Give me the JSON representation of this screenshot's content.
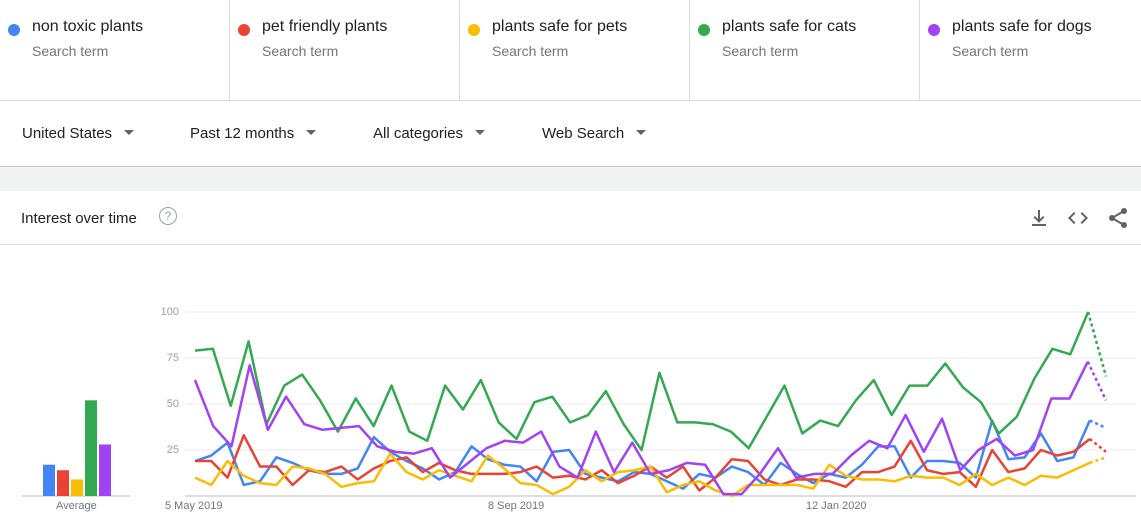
{
  "terms": [
    {
      "name": "non toxic plants",
      "sub": "Search term",
      "color": "#4285f4"
    },
    {
      "name": "pet friendly plants",
      "sub": "Search term",
      "color": "#ea4335"
    },
    {
      "name": "plants safe for pets",
      "sub": "Search term",
      "color": "#fbbc04"
    },
    {
      "name": "plants safe for cats",
      "sub": "Search term",
      "color": "#34a853"
    },
    {
      "name": "plants safe for dogs",
      "sub": "Search term",
      "color": "#a142f4"
    }
  ],
  "filters": {
    "region": "United States",
    "period": "Past 12 months",
    "category": "All categories",
    "search_type": "Web Search"
  },
  "card": {
    "title": "Interest over time",
    "help": "?",
    "icons": [
      "download-icon",
      "embed-icon",
      "share-icon"
    ]
  },
  "chart_data": {
    "type": "line",
    "title": "Interest over time",
    "ylim": [
      0,
      100
    ],
    "yticks": [
      "100",
      "75",
      "50",
      "25"
    ],
    "xticklabels": [
      "5 May 2019",
      "8 Sep 2019",
      "12 Jan 2020"
    ],
    "average_label": "Average",
    "averages": [
      {
        "name": "non toxic plants",
        "value": 17
      },
      {
        "name": "pet friendly plants",
        "value": 14
      },
      {
        "name": "plants safe for pets",
        "value": 9
      },
      {
        "name": "plants safe for cats",
        "value": 52
      },
      {
        "name": "plants safe for dogs",
        "value": 28
      }
    ],
    "series": [
      {
        "name": "non toxic plants",
        "color": "#4285f4",
        "values": [
          19,
          22,
          29,
          6,
          8,
          21,
          18,
          14,
          12,
          12,
          15,
          32,
          24,
          19,
          15,
          9,
          13,
          27,
          20,
          17,
          16,
          8,
          24,
          25,
          12,
          10,
          8,
          13,
          12,
          8,
          4,
          12,
          10,
          16,
          13,
          6,
          18,
          12,
          7,
          12,
          10,
          17,
          27,
          27,
          10,
          19,
          19,
          18,
          10,
          41,
          20,
          21,
          34,
          19,
          21,
          41,
          37
        ],
        "dotted_from": 55
      },
      {
        "name": "pet friendly plants",
        "color": "#ea4335",
        "values": [
          19,
          19,
          10,
          33,
          16,
          16,
          6,
          14,
          13,
          16,
          9,
          15,
          19,
          21,
          13,
          18,
          14,
          12,
          12,
          12,
          13,
          16,
          10,
          11,
          9,
          14,
          7,
          11,
          16,
          10,
          16,
          3,
          10,
          20,
          19,
          9,
          6,
          9,
          9,
          8,
          5,
          13,
          13,
          16,
          30,
          14,
          12,
          13,
          5,
          25,
          13,
          15,
          25,
          22,
          24,
          31,
          24
        ],
        "dotted_from": 55
      },
      {
        "name": "plants safe for pets",
        "color": "#fbbc04",
        "values": [
          10,
          6,
          19,
          11,
          7,
          6,
          16,
          15,
          12,
          5,
          7,
          8,
          23,
          13,
          9,
          14,
          11,
          8,
          22,
          15,
          7,
          6,
          1,
          5,
          14,
          8,
          13,
          14,
          16,
          2,
          6,
          8,
          3,
          0,
          6,
          6,
          6,
          6,
          4,
          17,
          11,
          9,
          9,
          8,
          11,
          10,
          10,
          6,
          12,
          6,
          10,
          6,
          11,
          10,
          14,
          18,
          21
        ],
        "dotted_from": 55
      },
      {
        "name": "plants safe for cats",
        "color": "#34a853",
        "values": [
          79,
          80,
          49,
          84,
          39,
          60,
          66,
          52,
          35,
          53,
          38,
          60,
          35,
          30,
          60,
          47,
          63,
          40,
          31,
          51,
          54,
          40,
          44,
          57,
          39,
          25,
          67,
          40,
          40,
          39,
          35,
          26,
          43,
          60,
          34,
          41,
          38,
          52,
          63,
          44,
          60,
          60,
          72,
          59,
          51,
          34,
          43,
          64,
          80,
          77,
          100,
          65
        ],
        "dotted_from": 50
      },
      {
        "name": "plants safe for dogs",
        "color": "#a142f4",
        "values": [
          63,
          38,
          27,
          71,
          36,
          54,
          39,
          36,
          37,
          38,
          27,
          24,
          23,
          26,
          10,
          18,
          26,
          30,
          29,
          35,
          16,
          10,
          35,
          13,
          29,
          12,
          14,
          18,
          17,
          1,
          1,
          12,
          26,
          10,
          12,
          12,
          22,
          30,
          26,
          44,
          24,
          42,
          14,
          25,
          31,
          22,
          25,
          53,
          53,
          73,
          52
        ],
        "dotted_from": 49
      }
    ]
  }
}
